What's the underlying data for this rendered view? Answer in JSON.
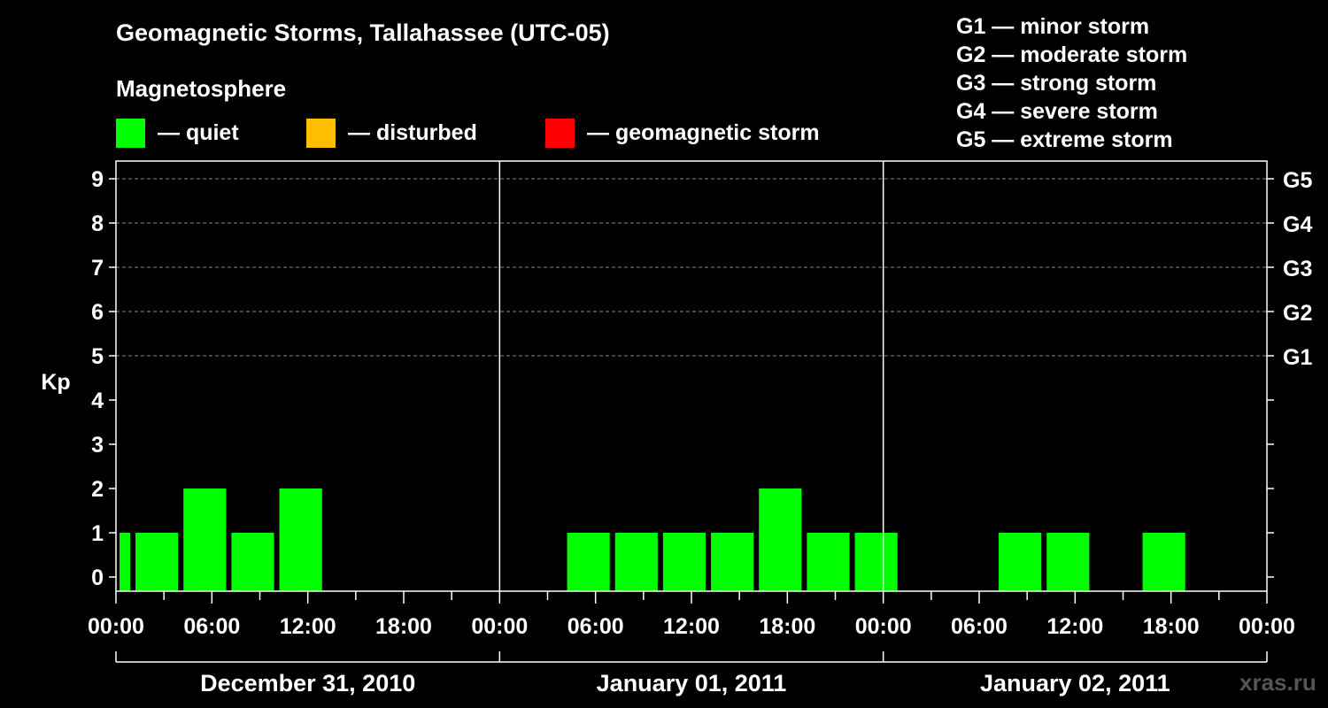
{
  "title": "Geomagnetic Storms, Tallahassee (UTC-05)",
  "magnetosphere": {
    "title": "Magnetosphere",
    "legend": [
      {
        "label": "— quiet",
        "color": "#00ff00"
      },
      {
        "label": "— disturbed",
        "color": "#ffbf00"
      },
      {
        "label": "— geomagnetic storm",
        "color": "#ff0000"
      }
    ]
  },
  "g_scale": [
    "G1 — minor storm",
    "G2 — moderate storm",
    "G3 — strong storm",
    "G4 — severe storm",
    "G5 — extreme storm"
  ],
  "watermark": "xras.ru",
  "chart_data": {
    "type": "bar",
    "ylabel": "Kp",
    "ylim": [
      0,
      9
    ],
    "y_ticks": [
      "0",
      "1",
      "2",
      "3",
      "4",
      "5",
      "6",
      "7",
      "8",
      "9"
    ],
    "right_labels": [
      {
        "kp": 5,
        "label": "G1"
      },
      {
        "kp": 6,
        "label": "G2"
      },
      {
        "kp": 7,
        "label": "G3"
      },
      {
        "kp": 8,
        "label": "G4"
      },
      {
        "kp": 9,
        "label": "G5"
      }
    ],
    "x_range_hours": [
      0,
      72
    ],
    "x_tick_labels": [
      {
        "hour": 0,
        "label": "00:00"
      },
      {
        "hour": 6,
        "label": "06:00"
      },
      {
        "hour": 12,
        "label": "12:00"
      },
      {
        "hour": 18,
        "label": "18:00"
      },
      {
        "hour": 24,
        "label": "00:00"
      },
      {
        "hour": 30,
        "label": "06:00"
      },
      {
        "hour": 36,
        "label": "12:00"
      },
      {
        "hour": 42,
        "label": "18:00"
      },
      {
        "hour": 48,
        "label": "00:00"
      },
      {
        "hour": 54,
        "label": "06:00"
      },
      {
        "hour": 60,
        "label": "12:00"
      },
      {
        "hour": 66,
        "label": "18:00"
      },
      {
        "hour": 72,
        "label": "00:00"
      }
    ],
    "days": [
      {
        "label": "December 31, 2010",
        "start": 0,
        "end": 24
      },
      {
        "label": "January 01, 2011",
        "start": 24,
        "end": 48
      },
      {
        "label": "January 02, 2011",
        "start": 48,
        "end": 72
      }
    ],
    "bars": [
      {
        "start": 0,
        "end": 1,
        "kp": 1,
        "level": "quiet"
      },
      {
        "start": 1,
        "end": 4,
        "kp": 1,
        "level": "quiet"
      },
      {
        "start": 4,
        "end": 7,
        "kp": 2,
        "level": "quiet"
      },
      {
        "start": 7,
        "end": 10,
        "kp": 1,
        "level": "quiet"
      },
      {
        "start": 10,
        "end": 13,
        "kp": 2,
        "level": "quiet"
      },
      {
        "start": 28,
        "end": 31,
        "kp": 1,
        "level": "quiet"
      },
      {
        "start": 31,
        "end": 34,
        "kp": 1,
        "level": "quiet"
      },
      {
        "start": 34,
        "end": 37,
        "kp": 1,
        "level": "quiet"
      },
      {
        "start": 37,
        "end": 40,
        "kp": 1,
        "level": "quiet"
      },
      {
        "start": 40,
        "end": 43,
        "kp": 2,
        "level": "quiet"
      },
      {
        "start": 43,
        "end": 46,
        "kp": 1,
        "level": "quiet"
      },
      {
        "start": 46,
        "end": 49,
        "kp": 1,
        "level": "quiet"
      },
      {
        "start": 55,
        "end": 58,
        "kp": 1,
        "level": "quiet"
      },
      {
        "start": 58,
        "end": 61,
        "kp": 1,
        "level": "quiet"
      },
      {
        "start": 64,
        "end": 67,
        "kp": 1,
        "level": "quiet"
      }
    ]
  }
}
